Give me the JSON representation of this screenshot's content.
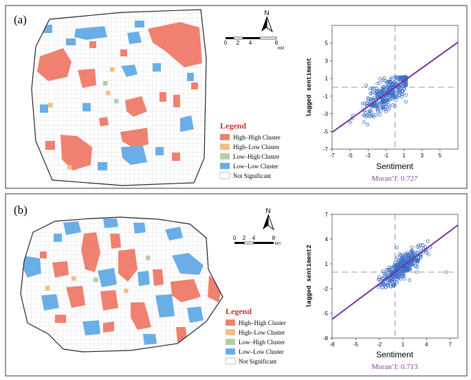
{
  "panels": [
    {
      "label": "(a)",
      "legend": {
        "title": "Legend",
        "items": [
          {
            "label": "High–High Cluster",
            "color": "#f08070"
          },
          {
            "label": "High–Low Cluster",
            "color": "#f5bd82"
          },
          {
            "label": "Low–High Cluster",
            "color": "#b5cca8"
          },
          {
            "label": "Low–Low Cluster",
            "color": "#6aaee8"
          },
          {
            "label": "Not Significant",
            "color": "#ffffff"
          }
        ]
      },
      "scale_bar": {
        "ticks": [
          "0",
          "2",
          "4",
          "8"
        ],
        "unit": "KM"
      },
      "north_label": "N",
      "moran_label": "Moran’",
      "moran_symbol": "I",
      "moran_value": ": 0.727"
    },
    {
      "label": "(b)",
      "legend": {
        "title": "Legend",
        "items": [
          {
            "label": "High–High Cluster",
            "color": "#f08070"
          },
          {
            "label": "High–Low Cluster",
            "color": "#f5bd82"
          },
          {
            "label": "Low–High Cluster",
            "color": "#b5cca8"
          },
          {
            "label": "Low–Low Cluster",
            "color": "#6aaee8"
          },
          {
            "label": "Not Significant",
            "color": "#ffffff"
          }
        ]
      },
      "scale_bar": {
        "ticks": [
          "0",
          "2",
          "4",
          "8"
        ],
        "unit": "km"
      },
      "north_label": "N",
      "moran_label": "Moran’",
      "moran_symbol": "I",
      "moran_value": ": 0.713"
    }
  ],
  "chart_data": [
    {
      "type": "scatter",
      "title": "",
      "xlabel": "Sentiment",
      "ylabel": "lagged sentiment",
      "xlim": [
        -7,
        7
      ],
      "ylim": [
        -7,
        7
      ],
      "xticks": [
        -7,
        -5,
        -3,
        -1,
        1,
        3,
        5
      ],
      "yticks": [
        -7,
        -5,
        -3,
        -1,
        1,
        3,
        5
      ],
      "grid": false,
      "regression_line": {
        "slope": 0.727,
        "intercept": 0
      },
      "reference_lines": {
        "x": 0,
        "y": 0
      },
      "colors": {
        "points": "#3a6fc9",
        "line": "#7b2fa0",
        "reference": "#999999",
        "moran": "#8a3fa0"
      }
    },
    {
      "type": "scatter",
      "title": "",
      "xlabel": "Sentiment",
      "ylabel": "lagged sentiment2",
      "xlim": [
        -8,
        8
      ],
      "ylim": [
        -8,
        7
      ],
      "xticks": [
        -8,
        -5,
        -2,
        1,
        4,
        7
      ],
      "yticks": [
        -8,
        -5,
        -2,
        1,
        4,
        7
      ],
      "grid": false,
      "regression_line": {
        "slope": 0.713,
        "intercept": 0
      },
      "reference_lines": {
        "x": 0,
        "y": 0
      },
      "colors": {
        "points": "#3a6fc9",
        "line": "#7b2fa0",
        "reference": "#999999",
        "moran": "#8a3fa0"
      }
    }
  ]
}
